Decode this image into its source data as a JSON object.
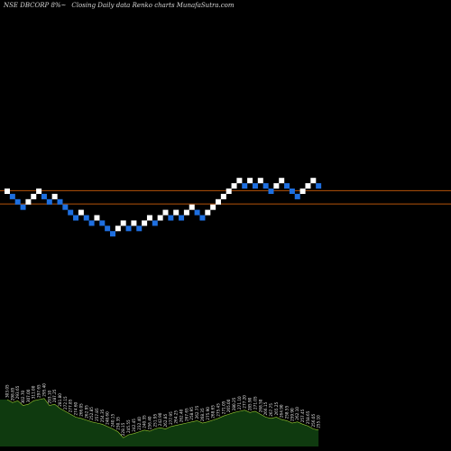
{
  "header": {
    "symbol": "NSE DBCORP 8%~",
    "description": "Closing Daily data  Renko  charts MunafaSutra.com"
  },
  "colors": {
    "background": "#000000",
    "up_brick": "#ffffff",
    "down_brick": "#1e6fe0",
    "level_line": "#b45309",
    "volume_fill": "#0f3a0f",
    "volume_stroke": "#9acd32",
    "label_text": "#e6e6e6"
  },
  "chart_data": {
    "type": "renko",
    "bricks": [
      {
        "row": 0,
        "dir": "up"
      },
      {
        "row": 1,
        "dir": "down"
      },
      {
        "row": 2,
        "dir": "down"
      },
      {
        "row": 3,
        "dir": "down"
      },
      {
        "row": 2,
        "dir": "up"
      },
      {
        "row": 1,
        "dir": "up"
      },
      {
        "row": 0,
        "dir": "up"
      },
      {
        "row": 1,
        "dir": "down"
      },
      {
        "row": 2,
        "dir": "down"
      },
      {
        "row": 1,
        "dir": "up"
      },
      {
        "row": 2,
        "dir": "down"
      },
      {
        "row": 3,
        "dir": "down"
      },
      {
        "row": 4,
        "dir": "down"
      },
      {
        "row": 5,
        "dir": "down"
      },
      {
        "row": 4,
        "dir": "up"
      },
      {
        "row": 5,
        "dir": "down"
      },
      {
        "row": 6,
        "dir": "down"
      },
      {
        "row": 5,
        "dir": "up"
      },
      {
        "row": 6,
        "dir": "down"
      },
      {
        "row": 7,
        "dir": "down"
      },
      {
        "row": 8,
        "dir": "down"
      },
      {
        "row": 7,
        "dir": "up"
      },
      {
        "row": 6,
        "dir": "up"
      },
      {
        "row": 7,
        "dir": "down"
      },
      {
        "row": 6,
        "dir": "up"
      },
      {
        "row": 7,
        "dir": "down"
      },
      {
        "row": 6,
        "dir": "up"
      },
      {
        "row": 5,
        "dir": "up"
      },
      {
        "row": 6,
        "dir": "down"
      },
      {
        "row": 5,
        "dir": "up"
      },
      {
        "row": 4,
        "dir": "up"
      },
      {
        "row": 5,
        "dir": "down"
      },
      {
        "row": 4,
        "dir": "up"
      },
      {
        "row": 5,
        "dir": "down"
      },
      {
        "row": 4,
        "dir": "up"
      },
      {
        "row": 3,
        "dir": "up"
      },
      {
        "row": 4,
        "dir": "down"
      },
      {
        "row": 5,
        "dir": "down"
      },
      {
        "row": 4,
        "dir": "up"
      },
      {
        "row": 3,
        "dir": "up"
      },
      {
        "row": 2,
        "dir": "up"
      },
      {
        "row": 1,
        "dir": "up"
      },
      {
        "row": 0,
        "dir": "up"
      },
      {
        "row": -1,
        "dir": "up"
      },
      {
        "row": -2,
        "dir": "up"
      },
      {
        "row": -1,
        "dir": "down"
      },
      {
        "row": -2,
        "dir": "up"
      },
      {
        "row": -1,
        "dir": "down"
      },
      {
        "row": -2,
        "dir": "up"
      },
      {
        "row": -1,
        "dir": "down"
      },
      {
        "row": 0,
        "dir": "down"
      },
      {
        "row": -1,
        "dir": "up"
      },
      {
        "row": -2,
        "dir": "up"
      },
      {
        "row": -1,
        "dir": "down"
      },
      {
        "row": 0,
        "dir": "down"
      },
      {
        "row": 1,
        "dir": "down"
      },
      {
        "row": 0,
        "dir": "up"
      },
      {
        "row": -1,
        "dir": "up"
      },
      {
        "row": -2,
        "dir": "up"
      },
      {
        "row": -1,
        "dir": "down"
      }
    ],
    "reference_rows": [
      -0.1,
      2.4
    ],
    "volume": [
      0.8,
      0.75,
      0.78,
      0.7,
      0.72,
      0.78,
      0.8,
      0.82,
      0.7,
      0.72,
      0.65,
      0.6,
      0.55,
      0.5,
      0.48,
      0.45,
      0.42,
      0.4,
      0.38,
      0.34,
      0.3,
      0.25,
      0.15,
      0.2,
      0.22,
      0.25,
      0.28,
      0.26,
      0.3,
      0.32,
      0.3,
      0.34,
      0.36,
      0.38,
      0.4,
      0.42,
      0.44,
      0.4,
      0.42,
      0.45,
      0.48,
      0.52,
      0.55,
      0.58,
      0.6,
      0.62,
      0.58,
      0.6,
      0.55,
      0.5,
      0.48,
      0.5,
      0.46,
      0.44,
      0.4,
      0.42,
      0.38,
      0.35,
      0.3,
      0.28
    ],
    "brick_labels": [
      "303.05",
      "298.85",
      "293.65",
      "302.70",
      "307.00",
      "311.00",
      "297.65",
      "295.40",
      "293.10",
      "287.25",
      "281.80",
      "272.15",
      "277.85",
      "274.60",
      "266.05",
      "262.95",
      "252.85",
      "257.85",
      "254.35",
      "248.60",
      "240.15",
      "230.35",
      "228.15",
      "245.55",
      "242.45",
      "232.40",
      "240.35",
      "256.40",
      "251.95",
      "242.90",
      "262.85",
      "277.95",
      "264.25",
      "262.40",
      "267.65",
      "258.95",
      "262.75",
      "268.35",
      "275.90",
      "268.65",
      "275.45",
      "271.05",
      "265.00",
      "280.25",
      "271.10",
      "277.20",
      "285.90",
      "271.05",
      "268.50",
      "266.15",
      "267.75",
      "265.25",
      "264.90",
      "258.55",
      "259.90",
      "262.10",
      "257.45",
      "258.65",
      "256.05",
      "255.10"
    ]
  }
}
